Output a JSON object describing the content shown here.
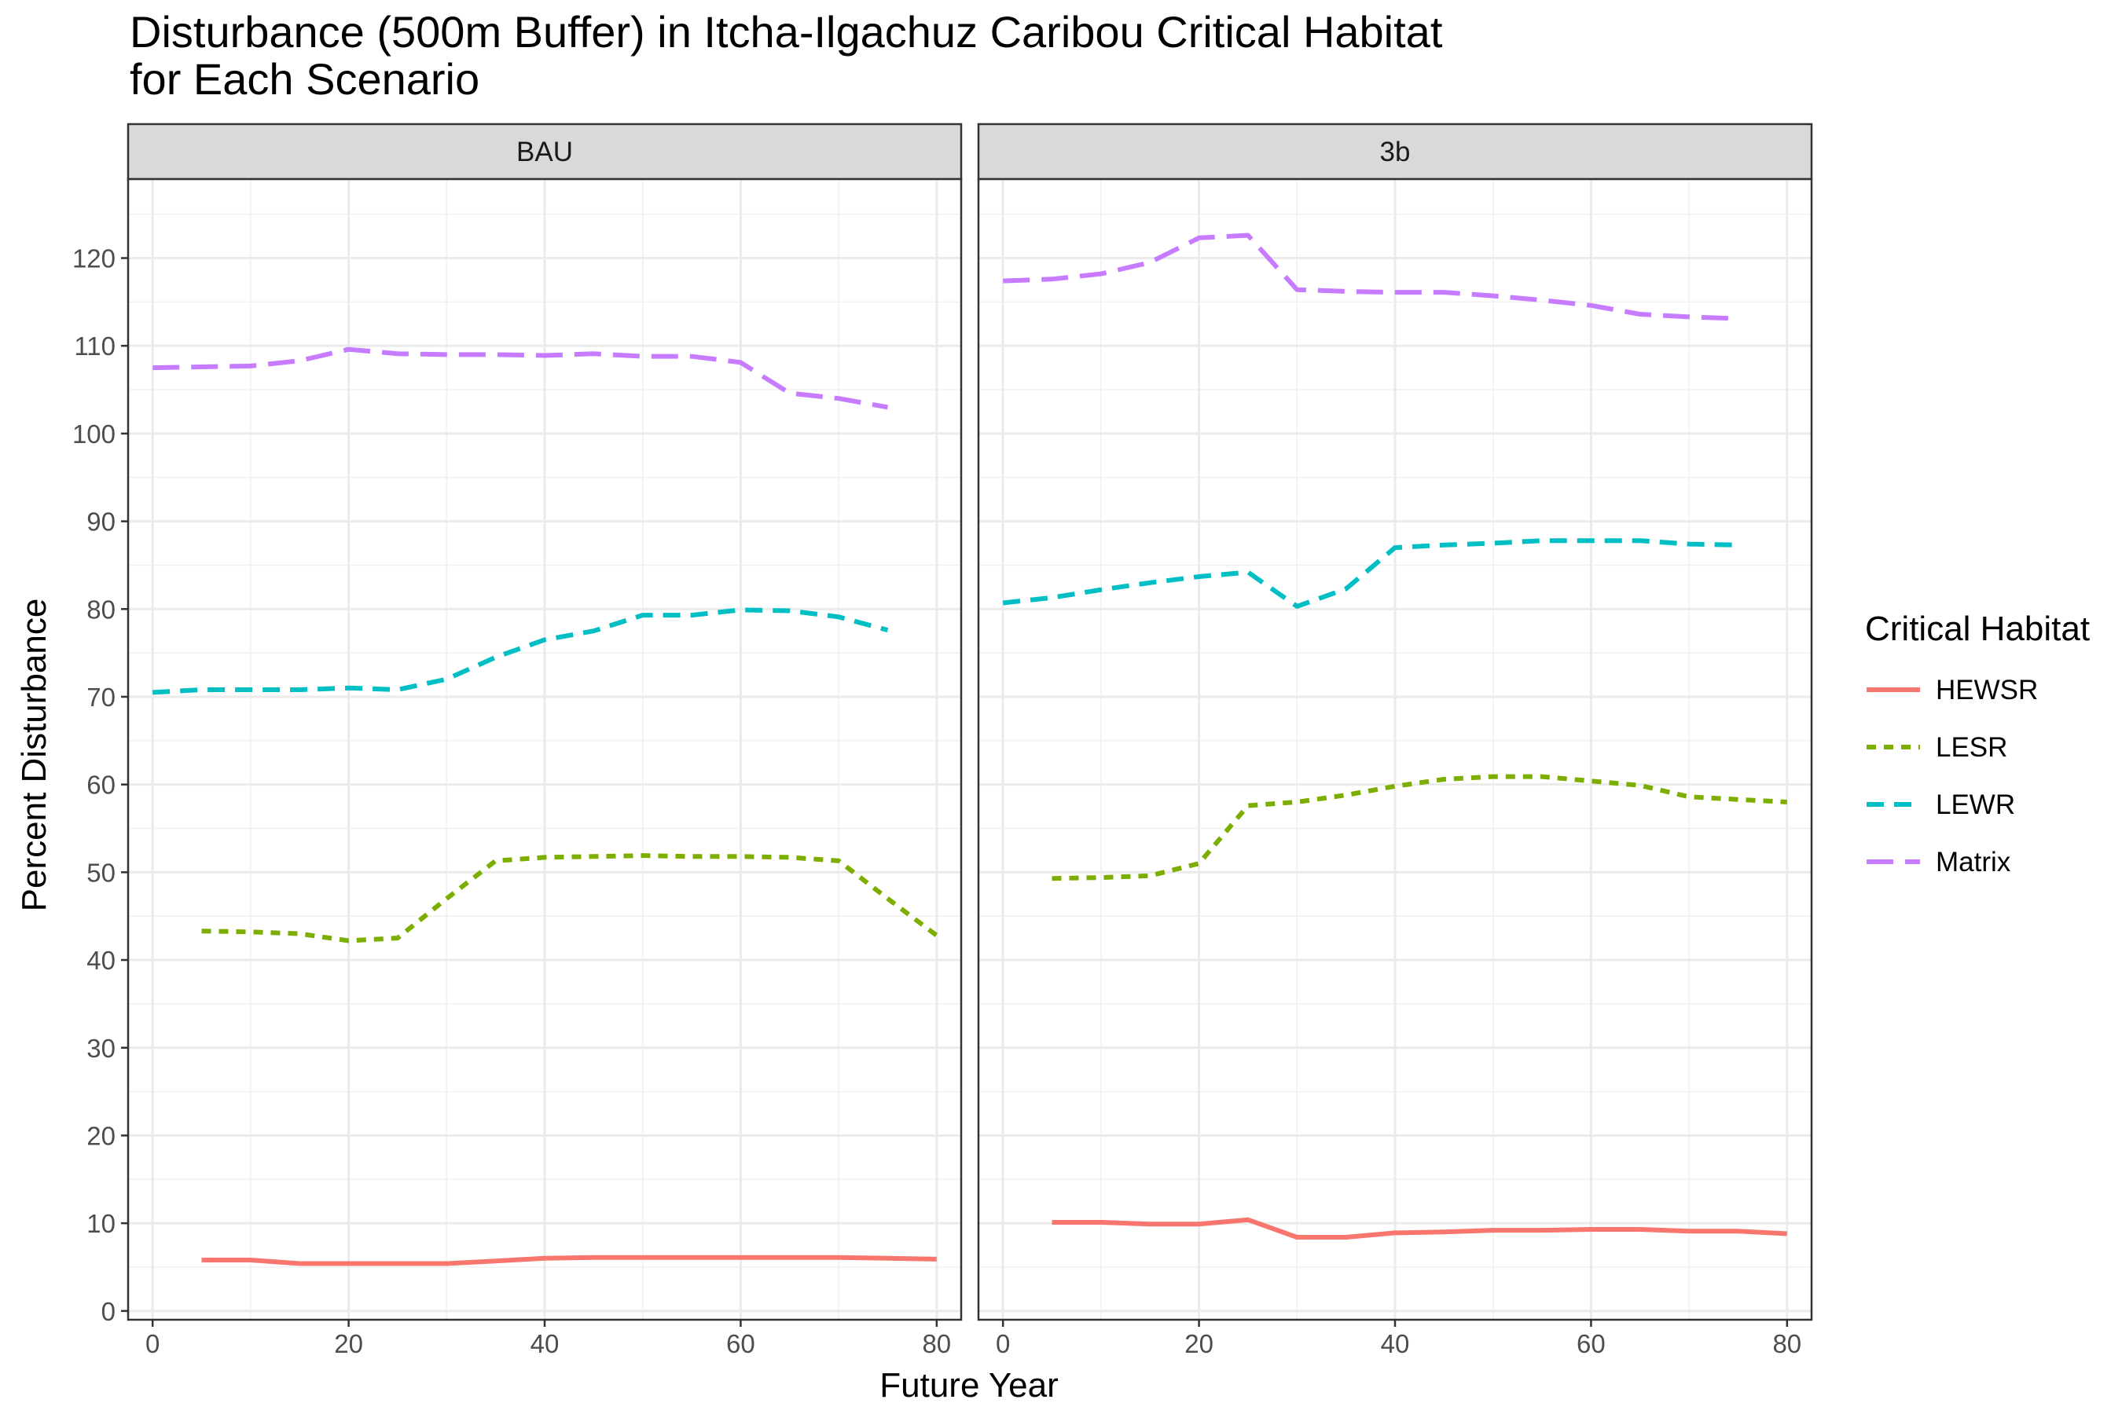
{
  "chart_data": {
    "type": "line",
    "title_lines": [
      "Disturbance (500m Buffer) in Itcha-Ilgachuz Caribou Critical Habitat",
      "for Each Scenario"
    ],
    "xlabel": "Future Year",
    "ylabel": "Percent Disturbance",
    "xlim": [
      -2.5,
      82.5
    ],
    "ylim": [
      -1,
      129
    ],
    "x_ticks": [
      0,
      20,
      40,
      60,
      80
    ],
    "y_ticks": [
      0,
      10,
      20,
      30,
      40,
      50,
      60,
      70,
      80,
      90,
      100,
      110,
      120
    ],
    "grid": true,
    "legend": {
      "title": "Critical Habitat",
      "placement": "right",
      "entries": [
        "HEWSR",
        "LESR",
        "LEWR",
        "Matrix"
      ]
    },
    "colors": {
      "HEWSR": "#F8766D",
      "LESR": "#7CAE00",
      "LEWR": "#00BFC4",
      "Matrix": "#C77CFF"
    },
    "line_styles": {
      "HEWSR": "solid",
      "LESR": "dotted",
      "LEWR": "dashed",
      "Matrix": "longdash"
    },
    "panels": [
      {
        "label": "BAU",
        "series": [
          {
            "name": "HEWSR",
            "x": [
              5,
              10,
              15,
              20,
              25,
              30,
              35,
              40,
              45,
              50,
              55,
              60,
              65,
              70,
              75,
              80
            ],
            "y": [
              5.8,
              5.8,
              5.4,
              5.4,
              5.4,
              5.4,
              5.7,
              6.0,
              6.1,
              6.1,
              6.1,
              6.1,
              6.1,
              6.1,
              6.0,
              5.9
            ]
          },
          {
            "name": "LESR",
            "x": [
              5,
              10,
              15,
              20,
              25,
              30,
              35,
              40,
              45,
              50,
              55,
              60,
              65,
              70,
              75,
              80
            ],
            "y": [
              43.3,
              43.2,
              43.0,
              42.2,
              42.5,
              47.0,
              51.3,
              51.7,
              51.8,
              51.9,
              51.8,
              51.8,
              51.7,
              51.3,
              47.0,
              42.8
            ]
          },
          {
            "name": "LEWR",
            "x": [
              0,
              5,
              10,
              15,
              20,
              25,
              30,
              35,
              40,
              45,
              50,
              55,
              60,
              65,
              70,
              75
            ],
            "y": [
              70.5,
              70.8,
              70.8,
              70.8,
              71.0,
              70.8,
              72.0,
              74.5,
              76.5,
              77.5,
              79.3,
              79.3,
              79.9,
              79.8,
              79.1,
              77.6
            ]
          },
          {
            "name": "Matrix",
            "x": [
              0,
              5,
              10,
              15,
              20,
              25,
              30,
              35,
              40,
              45,
              50,
              55,
              60,
              65,
              70,
              75
            ],
            "y": [
              107.5,
              107.6,
              107.7,
              108.3,
              109.6,
              109.1,
              109.0,
              109.0,
              108.9,
              109.1,
              108.8,
              108.8,
              108.1,
              104.6,
              104.0,
              103.0
            ]
          }
        ]
      },
      {
        "label": "3b",
        "series": [
          {
            "name": "HEWSR",
            "x": [
              5,
              10,
              15,
              20,
              25,
              30,
              35,
              40,
              45,
              50,
              55,
              60,
              65,
              70,
              75,
              80
            ],
            "y": [
              10.1,
              10.1,
              9.9,
              9.9,
              10.4,
              8.4,
              8.4,
              8.9,
              9.0,
              9.2,
              9.2,
              9.3,
              9.3,
              9.1,
              9.1,
              8.8
            ]
          },
          {
            "name": "LESR",
            "x": [
              5,
              10,
              15,
              20,
              25,
              30,
              35,
              40,
              45,
              50,
              55,
              60,
              65,
              70,
              75,
              80
            ],
            "y": [
              49.3,
              49.4,
              49.6,
              51.0,
              57.6,
              58.0,
              58.8,
              59.8,
              60.6,
              60.9,
              60.9,
              60.4,
              59.9,
              58.6,
              58.3,
              58.0
            ]
          },
          {
            "name": "LEWR",
            "x": [
              0,
              5,
              10,
              15,
              20,
              25,
              30,
              35,
              40,
              45,
              50,
              55,
              60,
              65,
              70,
              75
            ],
            "y": [
              80.7,
              81.3,
              82.2,
              83.0,
              83.7,
              84.2,
              80.3,
              82.3,
              87.0,
              87.3,
              87.5,
              87.8,
              87.8,
              87.8,
              87.4,
              87.3
            ]
          },
          {
            "name": "Matrix",
            "x": [
              0,
              5,
              10,
              15,
              20,
              25,
              30,
              35,
              40,
              45,
              50,
              55,
              60,
              65,
              70,
              75
            ],
            "y": [
              117.4,
              117.6,
              118.2,
              119.5,
              122.3,
              122.6,
              116.4,
              116.2,
              116.1,
              116.1,
              115.7,
              115.2,
              114.6,
              113.6,
              113.3,
              113.1
            ]
          }
        ]
      }
    ]
  }
}
